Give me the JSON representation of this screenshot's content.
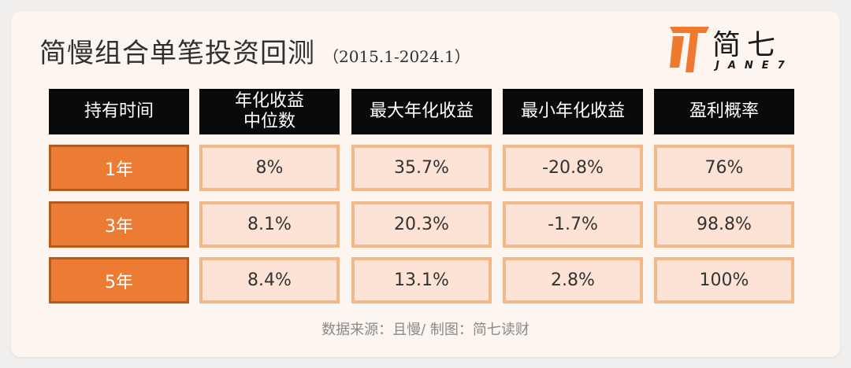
{
  "title": "简慢组合单笔投资回测",
  "subtitle": "（2015.1-2024.1）",
  "logo": {
    "cn": "简七",
    "en": "JANE7",
    "accent": "#ef7a2f"
  },
  "colors": {
    "header_bg": "#0a0a0a",
    "row_label_bg": "#ec7c33",
    "cell_bg": "#fde2d6",
    "cell_border": "#f2b887"
  },
  "chart_data": {
    "type": "table",
    "columns": [
      "持有时间",
      "年化收益中位数",
      "最大年化收益",
      "最小年化收益",
      "盈利概率"
    ],
    "header_lines": [
      [
        "持有时间"
      ],
      [
        "年化收益",
        "中位数"
      ],
      [
        "最大年化收益"
      ],
      [
        "最小年化收益"
      ],
      [
        "盈利概率"
      ]
    ],
    "rows": [
      {
        "label": "1年",
        "values": [
          "8%",
          "35.7%",
          "-20.8%",
          "76%"
        ]
      },
      {
        "label": "3年",
        "values": [
          "8.1%",
          "20.3%",
          "-1.7%",
          "98.8%"
        ]
      },
      {
        "label": "5年",
        "values": [
          "8.4%",
          "13.1%",
          "2.8%",
          "100%"
        ]
      }
    ]
  },
  "source": "数据来源：且慢/ 制图：简七读财"
}
